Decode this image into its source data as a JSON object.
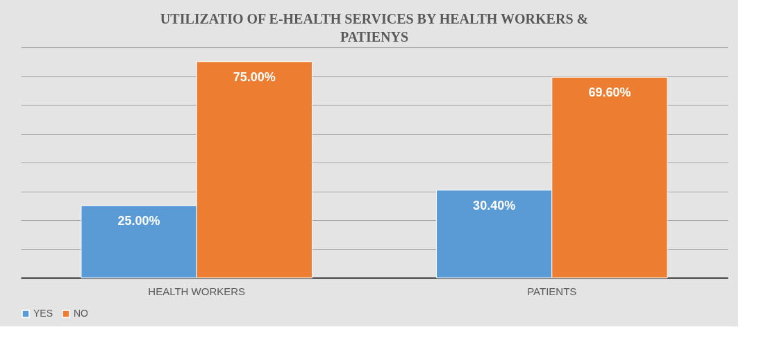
{
  "chart_data": {
    "type": "bar",
    "title": "UTILIZATIO  OF E-HEALTH SERVICES BY HEALTH  WORKERS & PATIENYS",
    "categories": [
      "HEALTH WORKERS",
      "PATIENTS"
    ],
    "series": [
      {
        "name": "YES",
        "color": "#5b9bd5",
        "values": [
          25.0,
          30.4
        ],
        "value_labels": [
          "25.00%",
          "30.40%"
        ]
      },
      {
        "name": "NO",
        "color": "#ed7d31",
        "values": [
          75.0,
          69.6
        ],
        "value_labels": [
          "75.00%",
          "69.60%"
        ]
      }
    ],
    "ylim": [
      0,
      80
    ],
    "yticks": [
      {
        "value": 0,
        "label": null
      },
      {
        "value": 10,
        "label": null
      },
      {
        "value": 20,
        "label": null
      },
      {
        "value": 30,
        "label": null
      },
      {
        "value": 40,
        "label": null
      },
      {
        "value": 50,
        "label": null
      },
      {
        "value": 60,
        "label": null
      },
      {
        "value": 70,
        "label": null
      },
      {
        "value": 80,
        "label": null
      }
    ],
    "tick_labels": "x",
    "grid": "y",
    "legend": "bottom"
  }
}
